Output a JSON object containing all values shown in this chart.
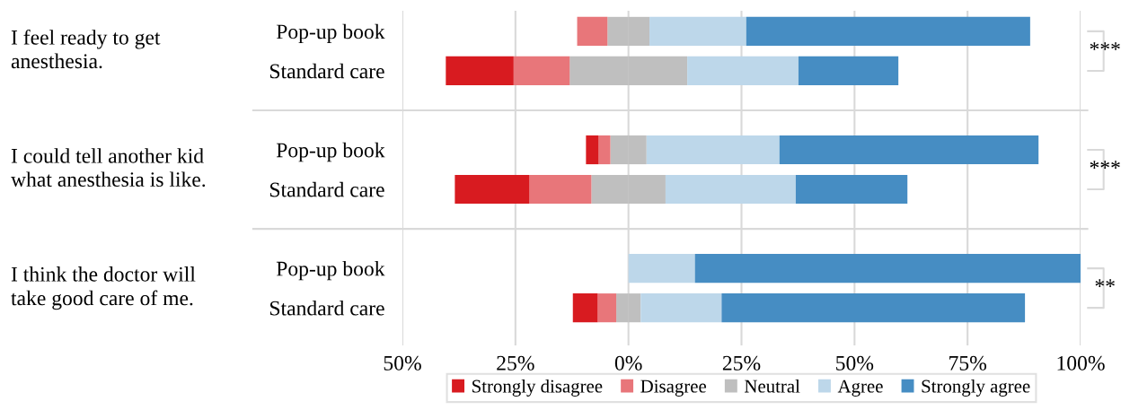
{
  "chart_data": {
    "type": "bar",
    "orientation": "horizontal",
    "stacked": true,
    "categories": [
      "Pop-up book",
      "Standard care",
      "Pop-up book",
      "Standard care",
      "Pop-up book",
      "Standard care"
    ],
    "series": [
      {
        "color": "#bfbfbf",
        "values": [
          -4.65,
          -13.0,
          -4.0,
          -8.2,
          0,
          -2.7
        ]
      },
      {
        "name": "Disagree",
        "color": "#e8767a",
        "values": [
          -6.7,
          -12.4,
          -2.6,
          -13.7,
          0,
          -4.1
        ]
      },
      {
        "name": "Strongly disagree",
        "color": "#d81b20",
        "values": [
          0,
          -15.0,
          -2.8,
          -16.5,
          0,
          -5.5
        ]
      },
      {
        "name": "Neutral",
        "color": "#bfbfbf",
        "values": [
          4.65,
          13.0,
          4.0,
          8.2,
          0,
          2.7
        ]
      },
      {
        "name": "Agree",
        "color": "#bdd7ea",
        "values": [
          21.4,
          24.6,
          29.4,
          28.8,
          14.7,
          17.9
        ]
      },
      {
        "name": "Strongly agree",
        "color": "#468dc3",
        "values": [
          62.8,
          22.1,
          57.3,
          24.7,
          85.3,
          67.1
        ]
      }
    ],
    "xlim": [
      -50,
      100
    ],
    "xticks": [
      {
        "value": -50,
        "label": "50%"
      },
      {
        "value": -25,
        "label": "25%"
      },
      {
        "value": 0,
        "label": "0%"
      },
      {
        "value": 25,
        "label": "25%"
      },
      {
        "value": 50,
        "label": "50%"
      },
      {
        "value": 75,
        "label": "75%"
      },
      {
        "value": 100,
        "label": "100%"
      }
    ],
    "grid": "x",
    "legend": "bottom",
    "annotations": [
      "I feel ready to get\nanesthesia.",
      "I could tell another kid\nwhat anesthesia is like.",
      "I think the doctor will\ntake good care of me.",
      "***",
      "***",
      "**"
    ]
  }
}
